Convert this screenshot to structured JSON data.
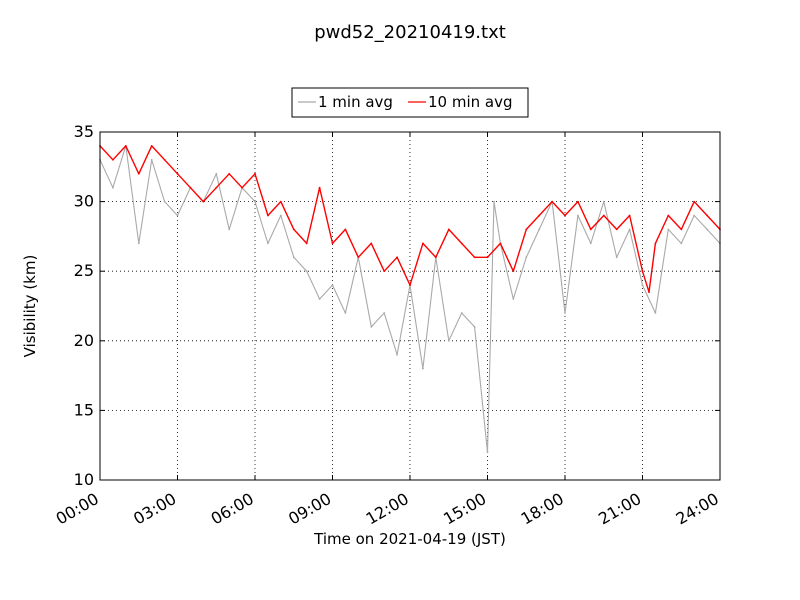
{
  "chart_data": {
    "type": "line",
    "title": "pwd52_20210419.txt",
    "xlabel": "Time on 2021-04-19 (JST)",
    "ylabel": "Visibility (km)",
    "xlim": [
      "00:00",
      "24:00"
    ],
    "ylim": [
      10,
      35
    ],
    "x_ticks": [
      "00:00",
      "03:00",
      "06:00",
      "09:00",
      "12:00",
      "15:00",
      "18:00",
      "21:00",
      "24:00"
    ],
    "y_ticks": [
      10,
      15,
      20,
      25,
      30,
      35
    ],
    "grid": true,
    "legend_position": "top-center",
    "series": [
      {
        "name": "1 min avg",
        "color": "#a9a9a9",
        "x": [
          "00:00",
          "00:30",
          "01:00",
          "01:30",
          "02:00",
          "02:30",
          "03:00",
          "03:30",
          "04:00",
          "04:30",
          "05:00",
          "05:30",
          "06:00",
          "06:30",
          "07:00",
          "07:30",
          "08:00",
          "08:30",
          "09:00",
          "09:30",
          "10:00",
          "10:30",
          "11:00",
          "11:30",
          "12:00",
          "12:30",
          "13:00",
          "13:30",
          "14:00",
          "14:30",
          "15:00",
          "15:15",
          "15:30",
          "16:00",
          "16:30",
          "17:00",
          "17:30",
          "18:00",
          "18:30",
          "19:00",
          "19:30",
          "20:00",
          "20:30",
          "21:00",
          "21:30",
          "22:00",
          "22:30",
          "23:00",
          "23:30",
          "24:00"
        ],
        "values": [
          33,
          31,
          34,
          27,
          33,
          30,
          29,
          31,
          30,
          32,
          28,
          31,
          30,
          27,
          29,
          26,
          25,
          23,
          24,
          22,
          26,
          21,
          22,
          19,
          24,
          18,
          26,
          20,
          22,
          21,
          12,
          30,
          27,
          23,
          26,
          28,
          30,
          22,
          29,
          27,
          30,
          26,
          28,
          24,
          22,
          28,
          27,
          29,
          28,
          27
        ]
      },
      {
        "name": "10 min avg",
        "color": "#ff0000",
        "x": [
          "00:00",
          "00:30",
          "01:00",
          "01:30",
          "02:00",
          "02:30",
          "03:00",
          "03:30",
          "04:00",
          "04:30",
          "05:00",
          "05:30",
          "06:00",
          "06:30",
          "07:00",
          "07:30",
          "08:00",
          "08:30",
          "09:00",
          "09:30",
          "10:00",
          "10:30",
          "11:00",
          "11:30",
          "12:00",
          "12:30",
          "13:00",
          "13:30",
          "14:00",
          "14:30",
          "15:00",
          "15:30",
          "16:00",
          "16:30",
          "17:00",
          "17:30",
          "18:00",
          "18:30",
          "19:00",
          "19:30",
          "20:00",
          "20:30",
          "21:00",
          "21:15",
          "21:30",
          "22:00",
          "22:30",
          "23:00",
          "23:30",
          "24:00"
        ],
        "values": [
          34,
          33,
          34,
          32,
          34,
          33,
          32,
          31,
          30,
          31,
          32,
          31,
          32,
          29,
          30,
          28,
          27,
          31,
          27,
          28,
          26,
          27,
          25,
          26,
          24,
          27,
          26,
          28,
          27,
          26,
          26,
          27,
          25,
          28,
          29,
          30,
          29,
          30,
          28,
          29,
          28,
          29,
          25,
          23.5,
          27,
          29,
          28,
          30,
          29,
          28
        ]
      }
    ]
  }
}
